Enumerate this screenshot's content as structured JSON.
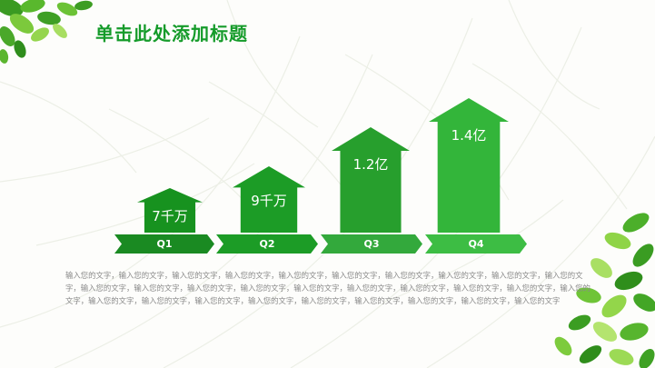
{
  "slide": {
    "title": "单击此处添加标题",
    "body_text": "输入您的文字，输入您的文字，输入您的文字，输入您的文字，输入您的文字，输入您的文字，输入您的文字，输入您的文字，输入您的文字，输入您的文字，输入您的文字，输入您的文字，输入您的文字，输入您的文字，输入您的文字，输入您的文字，输入您的文字，输入您的文字，输入您的文字，输入您的文字，输入您的文字，输入您的文字，输入您的文字，输入您的文字，输入您的文字，输入您的文字，输入您的文字，输入您的文字，输入您的文字"
  },
  "chart_data": {
    "type": "bar",
    "categories": [
      "Q1",
      "Q2",
      "Q3",
      "Q4"
    ],
    "value_labels": [
      "7千万",
      "9千万",
      "1.2亿",
      "1.4亿"
    ],
    "values": [
      70000000,
      90000000,
      120000000,
      140000000
    ],
    "title": "",
    "xlabel": "",
    "ylabel": ""
  },
  "colors": {
    "title": "#159b2a",
    "arrows": [
      "#17921f",
      "#1c9c26",
      "#279f2d",
      "#33b53a"
    ],
    "chevrons": [
      "#1a8a22",
      "#1c9c26",
      "#33a93c",
      "#3dbd44"
    ],
    "body_text": "#8a8a8a",
    "leaf_dark": "#2e9b1f",
    "leaf_light": "#8fd447"
  },
  "icons": {
    "top_left": "leaf-cluster-icon",
    "bottom_right": "leaf-cluster-icon"
  }
}
